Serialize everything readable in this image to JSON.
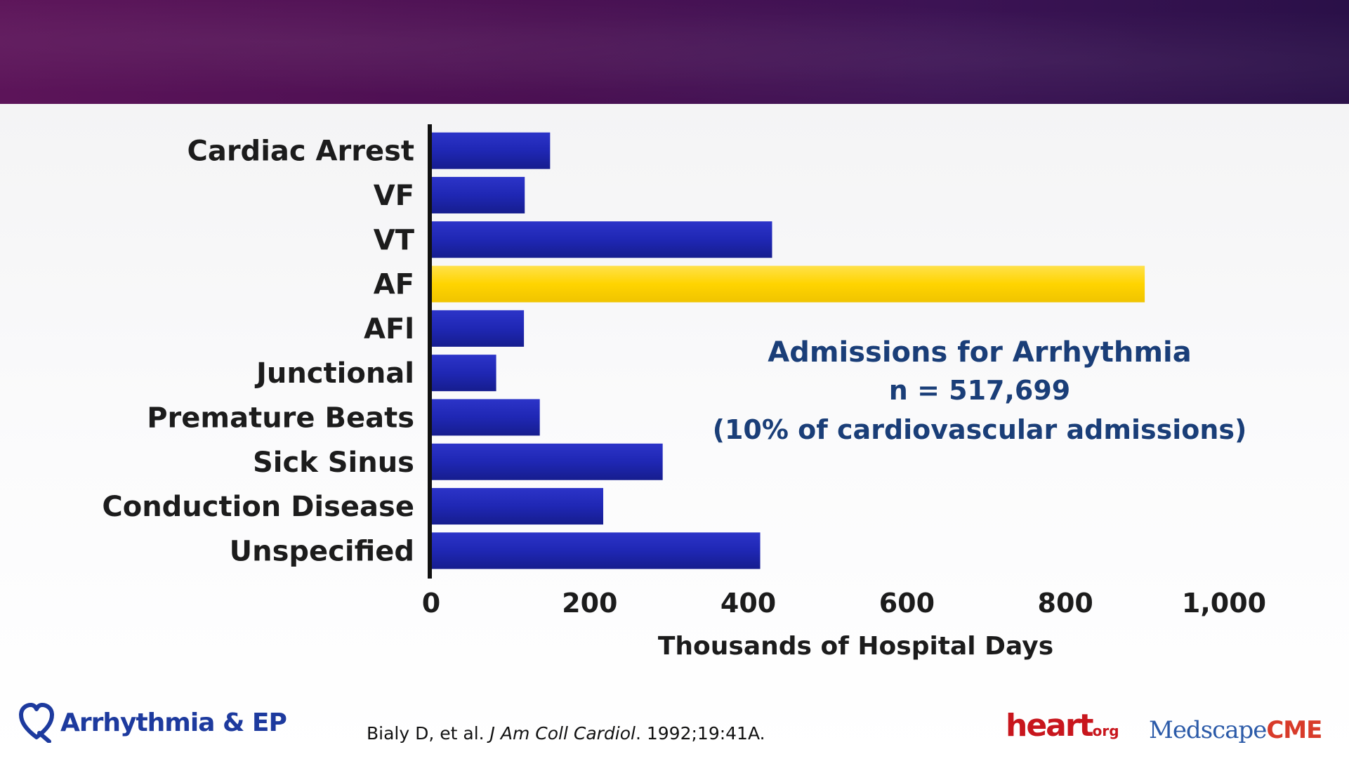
{
  "chart_data": {
    "type": "bar",
    "orientation": "horizontal",
    "categories": [
      "Cardiac Arrest",
      "VF",
      "VT",
      "AF",
      "AFl",
      "Junctional",
      "Premature Beats",
      "Sick Sinus",
      "Conduction Disease",
      "Unspecified"
    ],
    "values": [
      150,
      118,
      430,
      900,
      117,
      82,
      137,
      292,
      217,
      415
    ],
    "highlight_category": "AF",
    "xlabel": "Thousands of Hospital Days",
    "xlim": [
      0,
      1000
    ],
    "xticks": [
      "0",
      "200",
      "400",
      "600",
      "800",
      "1,000"
    ],
    "grid": false,
    "colors": {
      "bar": "#1f27b4",
      "highlight": "#ffd400"
    },
    "annotation": {
      "title": "Admissions for Arrhythmia",
      "line1": "n = 517,699",
      "line2": "(10% of cardiovascular admissions)"
    }
  },
  "footer": {
    "left_brand": "Arrhythmia & EP",
    "left_brand_icon": "heart-outline-icon",
    "citation_authors": "Bialy D, et al.",
    "citation_journal": "J Am Coll Cardiol",
    "citation_ref": ". 1992;19:41A.",
    "brand_heart": "heart",
    "brand_heart_org": "org",
    "brand_medscape": "Medscape",
    "brand_cme": "CME"
  },
  "colors": {
    "header_band": "#4a0f52",
    "annotation_text": "#1a3e78"
  }
}
